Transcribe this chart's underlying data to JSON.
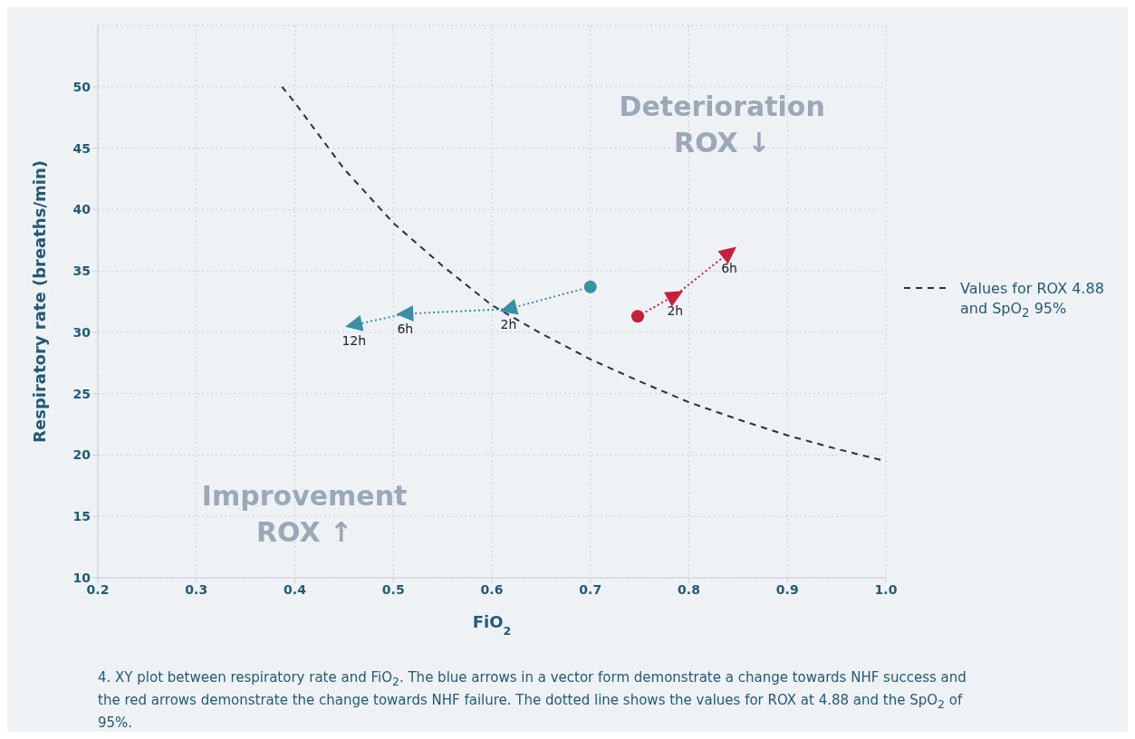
{
  "chart_data": {
    "type": "line",
    "xlabel": "FiO$_{2}$",
    "ylabel": "Respiratory rate (breaths/min)",
    "xlim": [
      0.2,
      1.0
    ],
    "xticks": [
      0.2,
      0.3,
      0.4,
      0.5,
      0.6,
      0.7,
      0.8,
      0.9,
      {
        "value": 1.0,
        "label": "1.0"
      }
    ],
    "ylim": [
      10,
      55
    ],
    "yticks": [
      10,
      15,
      20,
      25,
      30,
      35,
      40,
      45,
      50
    ],
    "grid": true,
    "legend": "right",
    "series": [
      {
        "name": "Values for ROX 4.88 and SpO$_{2}$ 95%",
        "color": "#1c3550",
        "line_style": "dashed",
        "marker": "none",
        "x": [
          0.387,
          0.4,
          0.45,
          0.5,
          0.55,
          0.6,
          0.65,
          0.7,
          0.75,
          0.8,
          0.85,
          0.9,
          0.95,
          1.0
        ],
        "values": [
          50.0,
          48.7,
          43.3,
          38.9,
          35.4,
          32.2,
          29.9,
          27.8,
          26.0,
          24.3,
          22.9,
          21.6,
          20.5,
          19.5
        ]
      },
      {
        "type": "line",
        "color": "#3a8fa8",
        "line_style": "dotted",
        "marker": "triangle",
        "x": [
          0.7,
          0.617,
          0.512,
          0.46
        ],
        "values": [
          33.7,
          31.9,
          31.5,
          30.6
        ]
      },
      {
        "type": "scatter",
        "color": "#3a8fa8",
        "marker": "circle",
        "x": [
          0.7
        ],
        "values": [
          33.7
        ]
      },
      {
        "type": "line",
        "color": "#c8203a",
        "line_style": "dotted",
        "marker": "triangle",
        "x": [
          0.748,
          0.786,
          0.841
        ],
        "values": [
          31.3,
          33.0,
          36.5
        ]
      },
      {
        "type": "scatter",
        "color": "#c8203a",
        "marker": "circle",
        "x": [
          0.748
        ],
        "values": [
          31.3
        ]
      }
    ],
    "annotations": [
      {
        "text": "2h",
        "x": 0.617,
        "y": 31.9
      },
      {
        "text": "6h",
        "x": 0.512,
        "y": 31.5
      },
      {
        "text": "12h",
        "x": 0.46,
        "y": 30.6
      },
      {
        "text": "2h",
        "x": 0.786,
        "y": 33.0
      },
      {
        "text": "6h",
        "x": 0.841,
        "y": 36.5
      },
      "Deterioration ROX ↓",
      "Improvement ROX ↑",
      "4. XY plot between respiratory rate and FiO$_{2}$. The blue arrows in a vector form demonstrate a change towards NHF success and the red arrows demonstrate the change towards NHF failure. The dotted line shows the values for ROX at 4.88 and the SpO$_{2}$ of 95%."
    ]
  }
}
